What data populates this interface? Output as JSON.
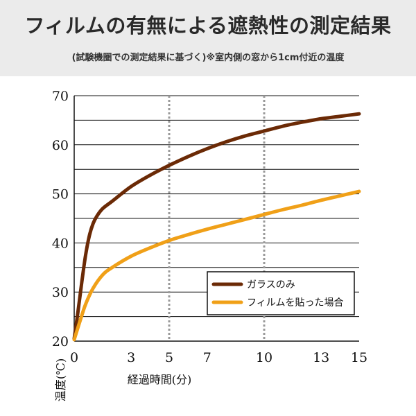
{
  "header": {
    "title": "フィルムの有無による遮熱性の測定結果",
    "subtitle": "(試験機圏での測定結果に基づく)※室内側の窓から1cm付近の温度"
  },
  "colors": {
    "glass_only": "#6b2a06",
    "with_film": "#f0a018",
    "grid": "#111111",
    "dotted": "#9a9a9a",
    "header_bg": "#ebebeb"
  },
  "chart_data": {
    "type": "line",
    "title": "フィルムの有無による遮熱性の測定結果",
    "xlabel": "経過時間(分)",
    "ylabel": "温度(℃)",
    "xlim": [
      0,
      15
    ],
    "ylim": [
      20,
      70
    ],
    "x_ticks": [
      0,
      3,
      5,
      7,
      10,
      13,
      15
    ],
    "y_ticks": [
      20,
      30,
      40,
      50,
      60,
      70
    ],
    "y_gridlines": [
      25,
      30,
      35,
      40,
      45,
      50,
      55,
      60,
      65,
      70
    ],
    "dotted_x_gridlines": [
      5,
      10
    ],
    "legend_position": "bottom-right",
    "series": [
      {
        "name": "ガラスのみ",
        "color_key": "glass_only",
        "x": [
          0,
          0.2,
          0.4,
          0.6,
          0.8,
          1.0,
          1.2,
          1.5,
          2,
          3,
          4,
          5,
          6,
          7,
          8,
          9,
          10,
          11,
          12,
          13,
          14,
          15
        ],
        "y": [
          20.5,
          26,
          32,
          37.5,
          41.5,
          44,
          45.5,
          47,
          48.5,
          51.5,
          53.8,
          55.8,
          57.6,
          59.2,
          60.6,
          61.8,
          62.8,
          63.8,
          64.6,
          65.3,
          65.8,
          66.3
        ]
      },
      {
        "name": "フィルムを貼った場合",
        "color_key": "with_film",
        "x": [
          0,
          0.3,
          0.6,
          1.0,
          1.5,
          2,
          3,
          4,
          5,
          6,
          7,
          8,
          9,
          10,
          11,
          12,
          13,
          14,
          15
        ],
        "y": [
          20.3,
          24,
          27.5,
          30.8,
          33.5,
          35,
          37.3,
          39,
          40.5,
          41.7,
          42.8,
          43.8,
          44.8,
          45.8,
          46.8,
          47.7,
          48.7,
          49.6,
          50.5
        ]
      }
    ]
  }
}
